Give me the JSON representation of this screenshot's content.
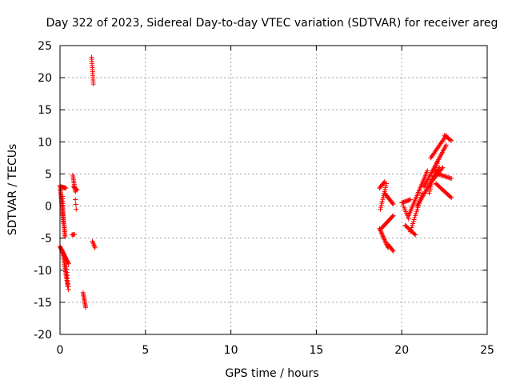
{
  "chart_data": {
    "type": "scatter",
    "title": "Day 322 of 2023, Sidereal Day-to-day VTEC variation (SDTVAR) for receiver areg",
    "xlabel": "GPS time / hours",
    "ylabel": "SDTVAR / TECUs",
    "xlim": [
      0,
      25
    ],
    "ylim": [
      -20,
      25
    ],
    "grid": true,
    "marker": "+",
    "color": "#ff0000",
    "x_ticks": [
      0,
      5,
      10,
      15,
      20,
      25
    ],
    "y_ticks": [
      -20,
      -15,
      -10,
      -5,
      0,
      5,
      10,
      15,
      20,
      25
    ],
    "series": [
      {
        "name": "SDTVAR",
        "clusters": [
          {
            "x0": 0.0,
            "y0": 3.2,
            "x1": 0.3,
            "y1": -4.8,
            "n": 40
          },
          {
            "x0": 0.05,
            "y0": 3.0,
            "x1": 0.35,
            "y1": 2.8,
            "n": 10
          },
          {
            "x0": 0.15,
            "y0": 1.5,
            "x1": 0.2,
            "y1": -2.5,
            "n": 12
          },
          {
            "x0": 0.0,
            "y0": -6.3,
            "x1": 0.5,
            "y1": -9.0,
            "n": 22
          },
          {
            "x0": 0.15,
            "y0": -7.0,
            "x1": 0.45,
            "y1": -12.5,
            "n": 25
          },
          {
            "x0": 0.35,
            "y0": -9.0,
            "x1": 0.5,
            "y1": -13.0,
            "n": 10
          },
          {
            "x0": 0.75,
            "y0": 4.8,
            "x1": 0.9,
            "y1": 2.2,
            "n": 12
          },
          {
            "x0": 0.8,
            "y0": 3.0,
            "x1": 1.0,
            "y1": 2.5,
            "n": 6
          },
          {
            "x0": 0.9,
            "y0": 1.0,
            "x1": 0.95,
            "y1": -0.5,
            "n": 3
          },
          {
            "x0": 0.7,
            "y0": -4.5,
            "x1": 0.85,
            "y1": -4.4,
            "n": 4
          },
          {
            "x0": 1.35,
            "y0": -13.5,
            "x1": 1.5,
            "y1": -15.8,
            "n": 12
          },
          {
            "x0": 1.85,
            "y0": 23.2,
            "x1": 1.95,
            "y1": 19.0,
            "n": 14
          },
          {
            "x0": 1.9,
            "y0": -5.5,
            "x1": 2.05,
            "y1": -6.5,
            "n": 6
          },
          {
            "x0": 18.7,
            "y0": 2.8,
            "x1": 19.0,
            "y1": 3.8,
            "n": 8
          },
          {
            "x0": 18.75,
            "y0": -0.5,
            "x1": 19.1,
            "y1": 3.5,
            "n": 14
          },
          {
            "x0": 19.0,
            "y0": 2.0,
            "x1": 19.5,
            "y1": 0.3,
            "n": 14
          },
          {
            "x0": 18.7,
            "y0": -3.5,
            "x1": 19.2,
            "y1": -6.5,
            "n": 18
          },
          {
            "x0": 18.8,
            "y0": -3.5,
            "x1": 19.5,
            "y1": -1.5,
            "n": 16
          },
          {
            "x0": 19.2,
            "y0": -6.0,
            "x1": 19.5,
            "y1": -7.0,
            "n": 8
          },
          {
            "x0": 20.0,
            "y0": 0.5,
            "x1": 20.5,
            "y1": 1.0,
            "n": 10
          },
          {
            "x0": 20.1,
            "y0": 0.0,
            "x1": 20.4,
            "y1": -2.0,
            "n": 8
          },
          {
            "x0": 20.2,
            "y0": -3.0,
            "x1": 20.8,
            "y1": -4.5,
            "n": 12
          },
          {
            "x0": 20.5,
            "y0": -4.0,
            "x1": 21.2,
            "y1": 2.0,
            "n": 20
          },
          {
            "x0": 20.4,
            "y0": -1.5,
            "x1": 21.5,
            "y1": 5.5,
            "n": 30
          },
          {
            "x0": 20.9,
            "y0": 0.0,
            "x1": 22.2,
            "y1": 6.0,
            "n": 30
          },
          {
            "x0": 21.3,
            "y0": 3.0,
            "x1": 22.6,
            "y1": 9.5,
            "n": 30
          },
          {
            "x0": 21.6,
            "y0": 2.0,
            "x1": 22.1,
            "y1": 7.0,
            "n": 16
          },
          {
            "x0": 21.7,
            "y0": 7.5,
            "x1": 22.6,
            "y1": 11.0,
            "n": 20
          },
          {
            "x0": 22.5,
            "y0": 11.0,
            "x1": 22.9,
            "y1": 10.2,
            "n": 8
          },
          {
            "x0": 22.1,
            "y0": 5.0,
            "x1": 22.9,
            "y1": 4.3,
            "n": 14
          },
          {
            "x0": 22.0,
            "y0": 3.5,
            "x1": 22.9,
            "y1": 1.3,
            "n": 18
          },
          {
            "x0": 21.8,
            "y0": 4.0,
            "x1": 22.4,
            "y1": 6.0,
            "n": 12
          }
        ]
      }
    ]
  }
}
